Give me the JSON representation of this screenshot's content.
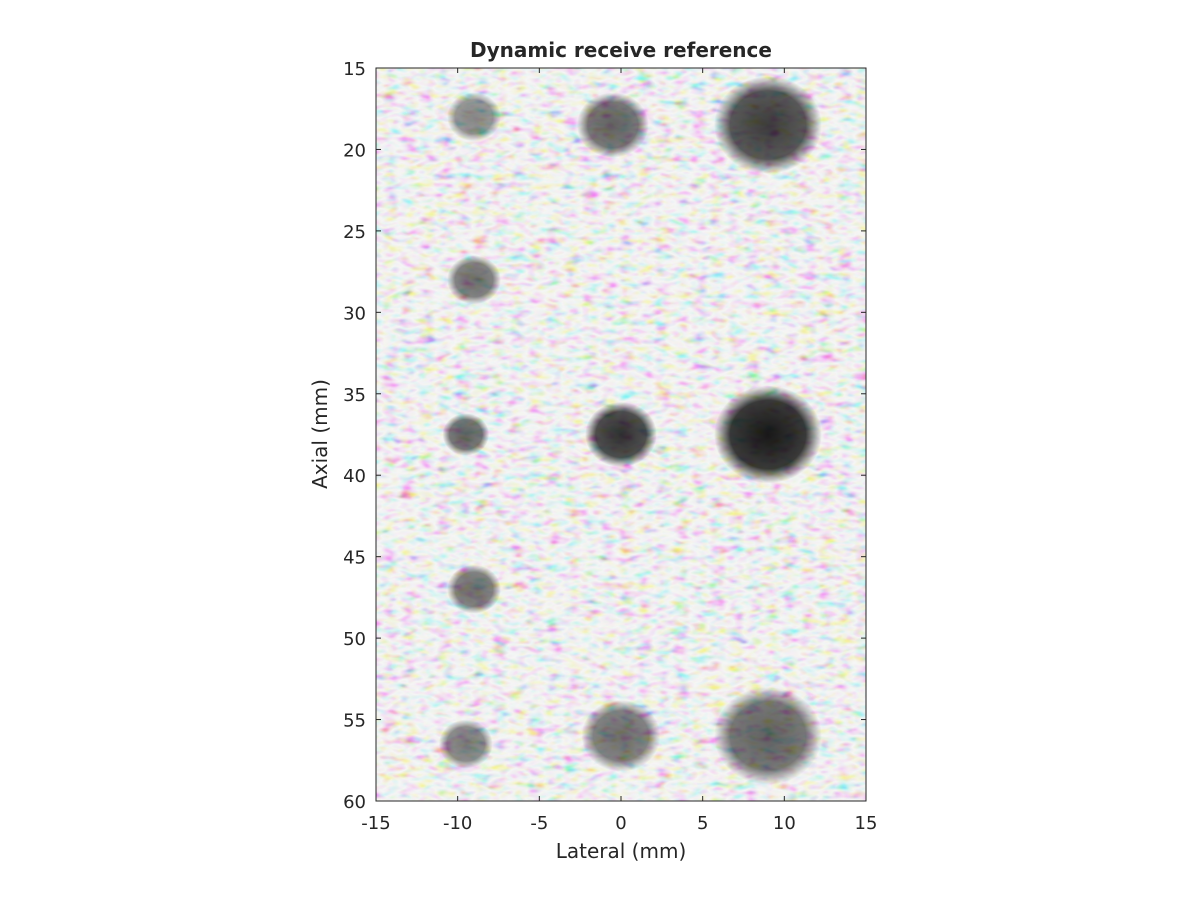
{
  "chart_data": {
    "type": "heatmap",
    "title": "Dynamic receive reference",
    "xlabel": "Lateral (mm)",
    "ylabel": "Axial (mm)",
    "xlim": [
      -15,
      15
    ],
    "ylim": [
      15,
      60
    ],
    "y_direction": "down",
    "colormap": "gray",
    "grid": false,
    "x_ticks": [
      -15,
      -10,
      -5,
      0,
      5,
      10,
      15
    ],
    "x_tick_labels": [
      "-15",
      "-10",
      "-5",
      "0",
      "5",
      "10",
      "15"
    ],
    "y_ticks": [
      15,
      20,
      25,
      30,
      35,
      40,
      45,
      50,
      55,
      60
    ],
    "y_tick_labels": [
      "15",
      "20",
      "25",
      "30",
      "35",
      "40",
      "45",
      "50",
      "55",
      "60"
    ],
    "anechoic_targets": [
      {
        "x": -9,
        "y": 18,
        "r": 1.5,
        "depth": 0.45
      },
      {
        "x": -0.5,
        "y": 18.5,
        "r": 2.0,
        "depth": 0.6
      },
      {
        "x": 9,
        "y": 18.5,
        "r": 3.0,
        "depth": 0.75
      },
      {
        "x": -9,
        "y": 28,
        "r": 1.5,
        "depth": 0.55
      },
      {
        "x": -9.5,
        "y": 37.5,
        "r": 1.3,
        "depth": 0.6
      },
      {
        "x": 0,
        "y": 37.5,
        "r": 2.0,
        "depth": 0.8
      },
      {
        "x": 9,
        "y": 37.5,
        "r": 3.0,
        "depth": 0.9
      },
      {
        "x": -9,
        "y": 47,
        "r": 1.5,
        "depth": 0.55
      },
      {
        "x": -9.5,
        "y": 56.5,
        "r": 1.5,
        "depth": 0.5
      },
      {
        "x": 0,
        "y": 56,
        "r": 2.2,
        "depth": 0.55
      },
      {
        "x": 9,
        "y": 56,
        "r": 3.0,
        "depth": 0.6
      }
    ]
  }
}
